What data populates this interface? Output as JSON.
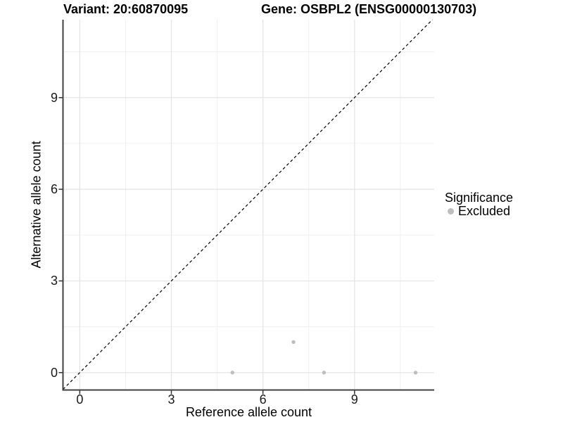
{
  "titles": {
    "variant": "Variant: 20:60870095",
    "gene": "Gene: OSBPL2 (ENSG00000130703)"
  },
  "legend": {
    "title": "Significance",
    "items": [
      {
        "label": "Excluded",
        "color": "#bebebe"
      }
    ]
  },
  "chart_data": {
    "type": "scatter",
    "title_left": "Variant: 20:60870095",
    "title_right": "Gene: OSBPL2 (ENSG00000130703)",
    "xlabel": "Reference allele count",
    "ylabel": "Alternative allele count",
    "xlim": [
      -0.55,
      11.61
    ],
    "ylim": [
      -0.57,
      11.55
    ],
    "x_major_ticks": [
      0,
      3,
      6,
      9
    ],
    "y_major_ticks": [
      0,
      3,
      6,
      9
    ],
    "x_minor_ticks": [
      1.5,
      4.5,
      7.5,
      10.5
    ],
    "y_minor_ticks": [
      1.5,
      4.5,
      7.5,
      10.5
    ],
    "grid": true,
    "legend_position": "right",
    "legend_title": "Significance",
    "series": [
      {
        "name": "Excluded",
        "color": "#bebebe",
        "points": [
          {
            "x": 5,
            "y": 0
          },
          {
            "x": 7,
            "y": 1
          },
          {
            "x": 8,
            "y": 0
          },
          {
            "x": 11,
            "y": 0
          }
        ]
      }
    ],
    "identity_line": {
      "equation": "y = x",
      "style": "dashed",
      "color": "#000000"
    }
  }
}
